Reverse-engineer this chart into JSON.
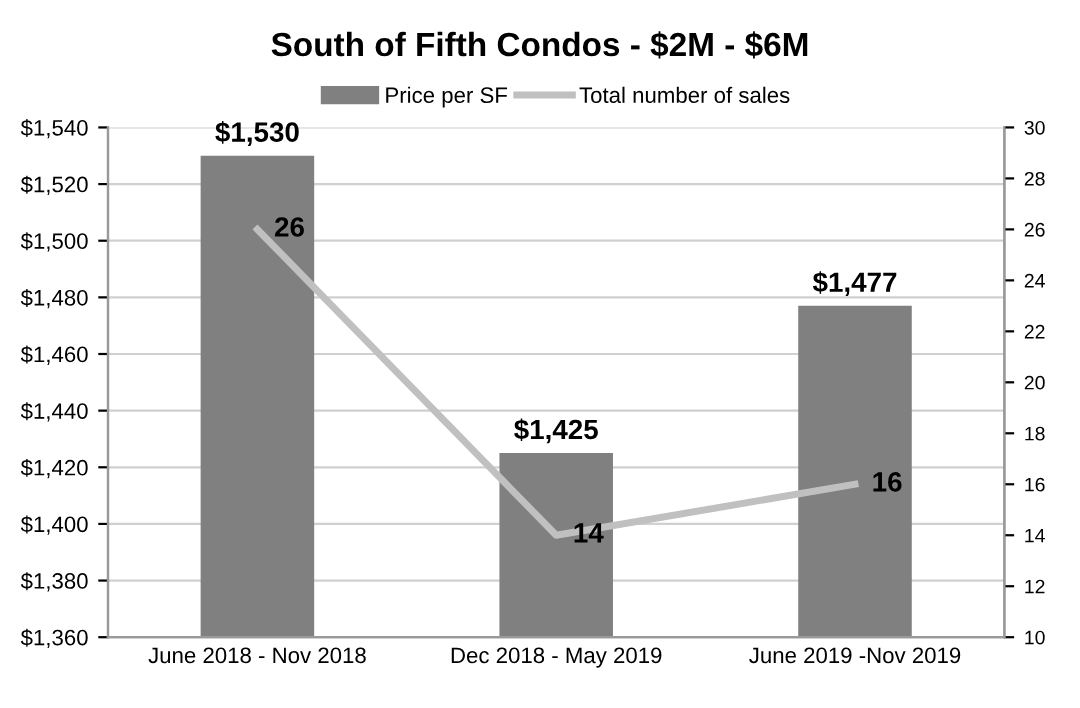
{
  "chart_data": {
    "type": "bar",
    "title": "South of Fifth Condos - $2M - $6M",
    "categories": [
      "June 2018 - Nov 2018",
      "Dec 2018 - May 2019",
      "June 2019 -Nov 2019"
    ],
    "series": [
      {
        "name": "Price per SF",
        "color": "#808080",
        "values": [
          1530,
          1425,
          1477
        ],
        "value_labels": [
          "$1,530",
          "$1,425",
          "$1,477"
        ]
      },
      {
        "name": "Total number of sales",
        "type": "line",
        "axis": "y2",
        "color": "#c0c0c0",
        "values": [
          26,
          14,
          16
        ],
        "value_labels": [
          "26",
          "14",
          "16"
        ]
      }
    ],
    "ylim": [
      1360,
      1540
    ],
    "yticks": [
      {
        "value": 1360,
        "label": "$1,360"
      },
      {
        "value": 1380,
        "label": "$1,380"
      },
      {
        "value": 1400,
        "label": "$1,400"
      },
      {
        "value": 1420,
        "label": "$1,420"
      },
      {
        "value": 1440,
        "label": "$1,440"
      },
      {
        "value": 1460,
        "label": "$1,460"
      },
      {
        "value": 1480,
        "label": "$1,480"
      },
      {
        "value": 1500,
        "label": "$1,500"
      },
      {
        "value": 1520,
        "label": "$1,520"
      },
      {
        "value": 1540,
        "label": "$1,540"
      }
    ],
    "y2lim": [
      10,
      30
    ],
    "y2ticks": [
      10,
      12,
      14,
      16,
      18,
      20,
      22,
      24,
      26,
      28,
      30
    ],
    "grid": "y",
    "legend": "top",
    "marker": "none"
  }
}
